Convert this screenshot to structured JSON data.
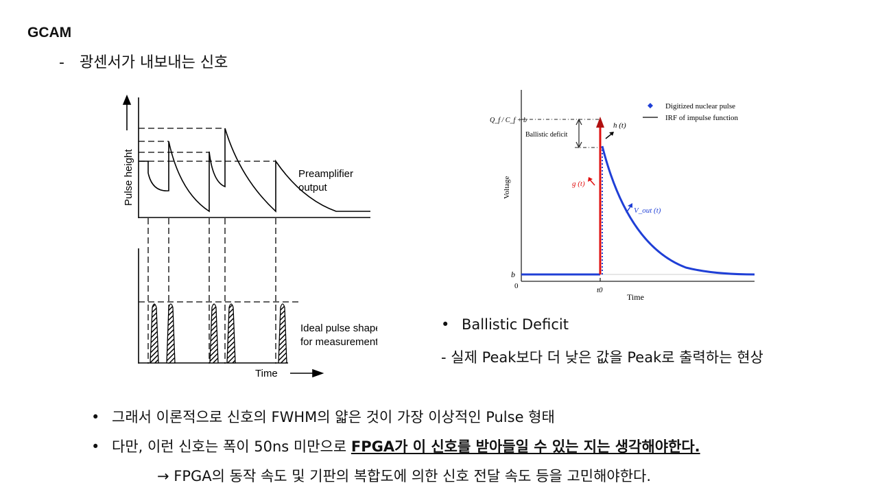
{
  "header": {
    "title": "GCAM",
    "subtitle_dash": "-",
    "subtitle": "광센서가 내보내는 신호"
  },
  "left_figure": {
    "y_axis_label": "Pulse height",
    "top_label_line1": "Preamplifier",
    "top_label_line2": "output",
    "bottom_label_line1": "Ideal pulse shape",
    "bottom_label_line2": "for measurement",
    "x_axis_label": "Time"
  },
  "right_figure": {
    "legend": [
      "Digitized nuclear pulse",
      "IRF of impulse function"
    ],
    "y_axis_label": "Voltage",
    "x_axis_label": "Time",
    "ytick_top": "Q_f / C_f + b",
    "ytick_bottom": "b",
    "origin": "0",
    "xtick_t0": "t0",
    "annotation_deficit": "Ballistic deficit",
    "annotation_h": "h (t)",
    "annotation_g": "g (t)",
    "annotation_vout": "V_out (t)",
    "colors": {
      "pulse": "#1f3fd6",
      "irf": "#e01010",
      "axis": "#222222"
    }
  },
  "notes": {
    "bullet_symbol": "•",
    "ballistic_heading": "Ballistic Deficit",
    "ballistic_desc": "- 실제 Peak보다 더 낮은 값을 Peak로 출력하는 현상",
    "bullet1": "그래서 이론적으로 신호의 FWHM의 얇은 것이 가장 이상적인 Pulse 형태",
    "bullet2_plain": "다만, 이런 신호는 폭이 50ns 미만으로 ",
    "bullet2_emph": "FPGA가 이 신호를 받아들일 수 있는 지는 생각해야한다.",
    "arrow_line": "→ FPGA의 동작 속도 및 기판의 복합도에 의한 신호 전달 속도 등을 고민해야한다."
  }
}
